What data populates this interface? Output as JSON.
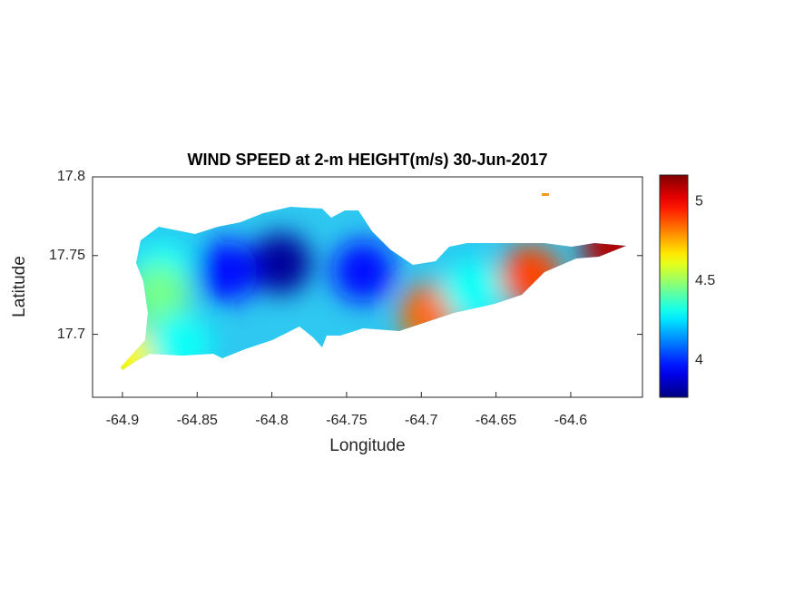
{
  "chart_data": {
    "type": "heatmap",
    "title": "WIND SPEED at 2-m HEIGHT(m/s) 30-Jun-2017",
    "xlabel": "Longitude",
    "ylabel": "Latitude",
    "x": [
      -64.794,
      -64.83,
      -64.739,
      -64.873,
      -64.876,
      -64.897,
      -64.694,
      -64.627,
      -64.572,
      -64.666,
      -64.861
    ],
    "y": [
      17.745,
      17.74,
      17.74,
      17.74,
      17.725,
      17.685,
      17.713,
      17.737,
      17.756,
      17.728,
      17.694
    ],
    "values": [
      3.8,
      3.95,
      3.95,
      4.3,
      4.45,
      4.65,
      4.85,
      4.9,
      5.1,
      4.3,
      4.3
    ],
    "xlim": [
      -64.92,
      -64.552
    ],
    "ylim": [
      17.66,
      17.8
    ],
    "xticks": [
      -64.9,
      -64.85,
      -64.8,
      -64.75,
      -64.7,
      -64.65,
      -64.6
    ],
    "yticks": [
      17.7,
      17.75,
      17.8
    ],
    "colormap": "jet",
    "clim": [
      3.766,
      5.166
    ],
    "cticks": [
      4,
      4.5,
      5
    ]
  }
}
